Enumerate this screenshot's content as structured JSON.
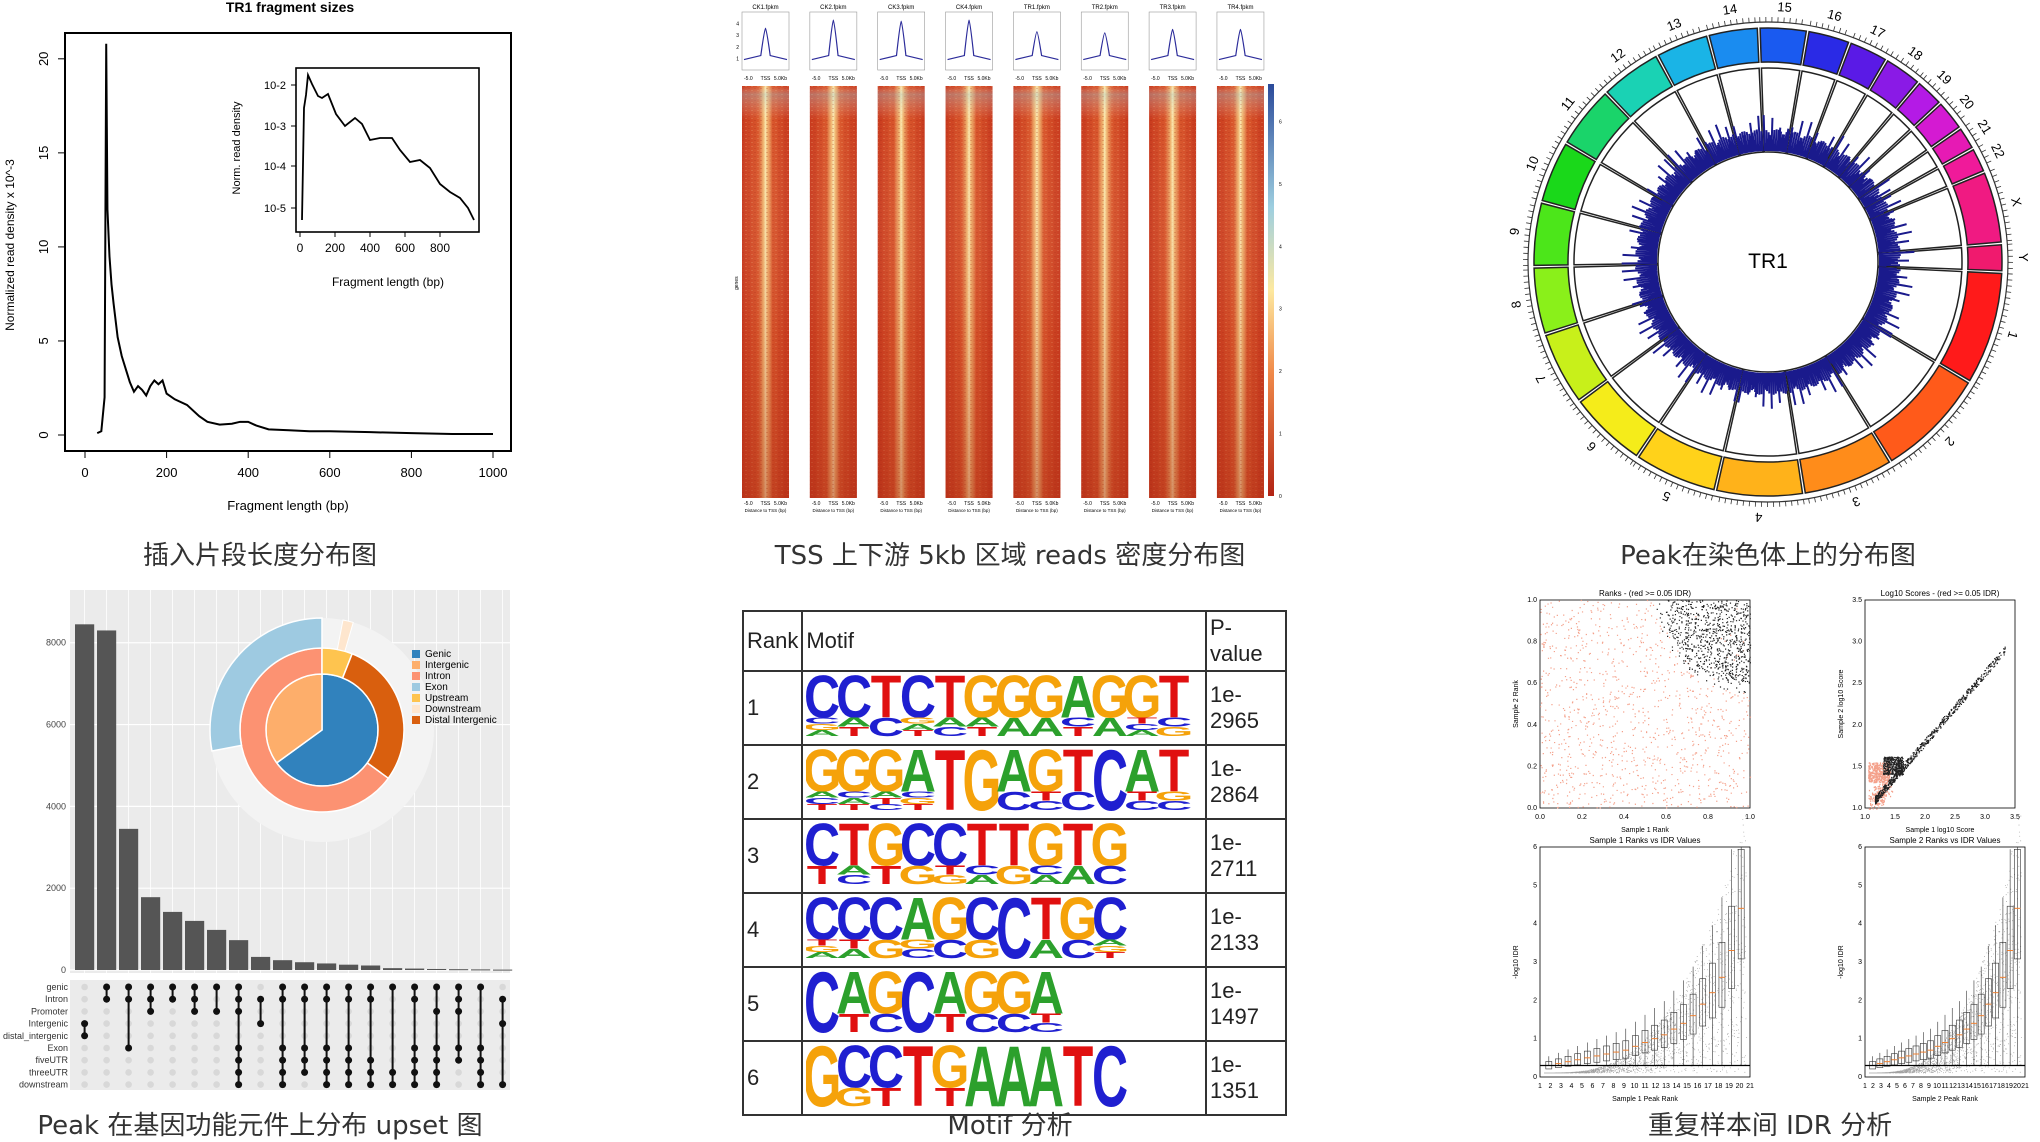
{
  "captions": {
    "p1": "插入片段长度分布图",
    "p2": "TSS 上下游 5kb 区域 reads 密度分布图",
    "p3": "Peak在染色体上的分布图",
    "p4": "Peak 在基因功能元件上分布 upset 图",
    "p5": "Motif 分析",
    "p6": "重复样本间 IDR 分析"
  },
  "colors": {
    "A": "#2ca02c",
    "C": "#1f1fd0",
    "G": "#f5a20a",
    "T": "#e01010",
    "bar": "#555555",
    "heat_low": "#c83a1e",
    "heat_high": "#fbe9a6",
    "circos_density": "#1a1a8c"
  },
  "chart_data": [
    {
      "type": "line",
      "title": "TR1 fragment sizes",
      "xlabel": "Fragment length (bp)",
      "ylabel": "Normalized read density x 10^-3",
      "xlim": [
        0,
        1000
      ],
      "ylim": [
        0,
        21
      ],
      "xticks": [
        "0",
        "200",
        "400",
        "600",
        "800",
        "1000"
      ],
      "yticks": [
        "0",
        "5",
        "10",
        "15",
        "20"
      ],
      "x": [
        30,
        40,
        48,
        52,
        55,
        60,
        65,
        70,
        80,
        90,
        100,
        110,
        120,
        130,
        140,
        150,
        160,
        170,
        180,
        190,
        200,
        220,
        250,
        280,
        300,
        330,
        360,
        380,
        400,
        420,
        450,
        500,
        550,
        600,
        700,
        800,
        900,
        1000
      ],
      "y": [
        0.1,
        0.2,
        2.0,
        20.8,
        12.0,
        9.5,
        8.0,
        7.0,
        5.2,
        4.2,
        3.5,
        2.8,
        2.3,
        2.6,
        2.4,
        2.1,
        2.6,
        2.9,
        2.7,
        2.9,
        2.2,
        1.9,
        1.6,
        1.0,
        0.7,
        0.55,
        0.6,
        0.7,
        0.7,
        0.5,
        0.3,
        0.25,
        0.2,
        0.2,
        0.15,
        0.1,
        0.05,
        0.05
      ],
      "inset": {
        "ylabel": "Norm. read density",
        "xlabel": "Fragment length (bp)",
        "yscale": "log",
        "xticks": [
          "0",
          "200",
          "400",
          "600",
          "800"
        ],
        "yticks": [
          "10^-5",
          "10^-4",
          "10^-3",
          "10^-2"
        ]
      }
    },
    {
      "type": "heatmap",
      "samples": [
        "CK1.fpkm",
        "CK2.fpkm",
        "CK3.fpkm",
        "CK4.fpkm",
        "TR1.fpkm",
        "TR2.fpkm",
        "TR3.fpkm",
        "TR4.fpkm"
      ],
      "profile_peak": [
        3.6,
        4.3,
        4.2,
        4.3,
        3.3,
        3.2,
        3.5,
        3.5
      ],
      "profile_yticks": [
        "1",
        "2",
        "3",
        "4"
      ],
      "xticks": [
        "-5.0",
        "TSS",
        "5.0Kb"
      ],
      "xlabel": "Distance to TSS (bp)",
      "row_label": "genes",
      "colorbar_ticks": [
        "0",
        "1",
        "2",
        "3",
        "4",
        "5",
        "6"
      ]
    },
    {
      "type": "circos",
      "center_label": "TR1",
      "chromosomes": [
        "1",
        "2",
        "3",
        "4",
        "5",
        "6",
        "7",
        "8",
        "9",
        "10",
        "11",
        "12",
        "13",
        "14",
        "15",
        "16",
        "17",
        "18",
        "19",
        "20",
        "21",
        "22",
        "X",
        "Y"
      ],
      "chrom_colors": [
        "#ff1a1a",
        "#ff5a1a",
        "#ff8c1a",
        "#ffb21a",
        "#ffd21a",
        "#f5ec1a",
        "#c8f01a",
        "#8af01a",
        "#4ce61a",
        "#1ad81a",
        "#1ad46a",
        "#1ad2b4",
        "#1ab4e6",
        "#1a8cf0",
        "#1a5af0",
        "#2a2ae6",
        "#5a1ae6",
        "#8a1ae6",
        "#b41ae6",
        "#d41ad2",
        "#e61ab4",
        "#f01a9a",
        "#f01a82",
        "#f01a6e"
      ]
    },
    {
      "type": "bar",
      "title": "",
      "values": [
        8450,
        8300,
        3450,
        1780,
        1420,
        1200,
        980,
        730,
        320,
        240,
        190,
        160,
        130,
        110,
        45,
        35,
        25,
        20,
        15,
        10
      ],
      "yticks": [
        "0",
        "2000",
        "4000",
        "6000",
        "8000"
      ],
      "ylim": [
        0,
        8800
      ],
      "sets": [
        "genic",
        "Intron",
        "Promoter",
        "Intergenic",
        "distal_intergenic",
        "Exon",
        "fiveUTR",
        "threeUTR",
        "downstream"
      ],
      "matrix": [
        [
          3,
          4
        ],
        [
          0,
          1
        ],
        [
          0,
          1,
          5
        ],
        [
          0,
          1,
          2
        ],
        [
          0,
          1
        ],
        [
          0,
          1,
          2
        ],
        [
          0,
          2
        ],
        [
          0,
          1,
          2,
          5,
          6,
          7,
          8
        ],
        [
          1,
          3
        ],
        [
          0,
          1,
          5,
          6,
          7,
          8
        ],
        [
          0,
          1,
          5,
          6,
          7
        ],
        [
          0,
          1,
          5,
          6,
          7,
          8
        ],
        [
          0,
          1,
          5,
          6,
          7,
          8
        ],
        [
          0,
          1,
          6,
          7,
          8
        ],
        [
          0,
          7,
          8
        ],
        [
          0,
          1,
          5,
          6,
          7,
          8
        ],
        [
          0,
          2,
          5,
          6,
          7,
          8
        ],
        [
          0,
          1,
          2,
          5,
          6
        ],
        [
          0,
          5,
          6,
          7,
          8
        ],
        [
          1,
          3,
          8
        ]
      ],
      "legend": [
        "Genic",
        "Intergenic",
        "Intron",
        "Exon",
        "Upstream",
        "Downstream",
        "Distal Intergenic"
      ],
      "legend_colors": [
        "#3182bd",
        "#fdae6b",
        "#fc9272",
        "#9ecae1",
        "#fec44f",
        "#fee6ce",
        "#d95f0e"
      ],
      "pie_inner": [
        {
          "name": "Genic",
          "value": 0.65
        },
        {
          "name": "Intergenic",
          "value": 0.35
        }
      ],
      "pie_middle": [
        {
          "name": "Intron",
          "value": 0.62
        },
        {
          "name": "Distal Intergenic",
          "value": 0.32
        },
        {
          "name": "Upstream",
          "value": 0.06
        }
      ],
      "pie_outer": [
        {
          "name": "Exon",
          "value": 0.24
        },
        {
          "name": "Downstream",
          "value": 0.02
        }
      ]
    },
    {
      "type": "table",
      "header": [
        "Rank",
        "Motif",
        "P-value"
      ],
      "rows": [
        {
          "rank": "1",
          "p1": "1e-",
          "p2": "2965",
          "motif": [
            [
              "C",
              "C",
              "G",
              "A"
            ],
            [
              "C",
              "A",
              "T"
            ],
            [
              "T",
              "C"
            ],
            [
              "C",
              "G",
              "A",
              "T"
            ],
            [
              "T",
              "A",
              "C"
            ],
            [
              "G",
              "A",
              "T"
            ],
            [
              "G",
              "A"
            ],
            [
              "G",
              "A"
            ],
            [
              "A",
              "C",
              "T"
            ],
            [
              "G",
              "A"
            ],
            [
              "G",
              "T",
              "C",
              "A"
            ],
            [
              "T",
              "C",
              "G"
            ]
          ]
        },
        {
          "rank": "2",
          "p1": "1e-",
          "p2": "2864",
          "motif": [
            [
              "G",
              "A",
              "C",
              "T"
            ],
            [
              "G",
              "C",
              "A",
              "T"
            ],
            [
              "G",
              "A",
              "T",
              "C"
            ],
            [
              "A",
              "C",
              "G",
              "T"
            ],
            [
              "T"
            ],
            [
              "G"
            ],
            [
              "A",
              "C"
            ],
            [
              "G",
              "T",
              "C"
            ],
            [
              "T",
              "C"
            ],
            [
              "C"
            ],
            [
              "A",
              "T",
              "C"
            ],
            [
              "T",
              "G",
              "C"
            ]
          ]
        },
        {
          "rank": "3",
          "p1": "1e-",
          "p2": "2711",
          "motif": [
            [
              "C",
              "T"
            ],
            [
              "T",
              "A",
              "C"
            ],
            [
              "G",
              "T"
            ],
            [
              "C",
              "G"
            ],
            [
              "C",
              "T",
              "G"
            ],
            [
              "T",
              "C",
              "A"
            ],
            [
              "T",
              "G"
            ],
            [
              "G",
              "C",
              "A"
            ],
            [
              "T",
              "A"
            ],
            [
              "G",
              "C"
            ]
          ]
        },
        {
          "rank": "4",
          "p1": "1e-",
          "p2": "2133",
          "motif": [
            [
              "C",
              "T",
              "G",
              "A"
            ],
            [
              "C",
              "T",
              "A"
            ],
            [
              "C",
              "G"
            ],
            [
              "A",
              "G",
              "C"
            ],
            [
              "G",
              "C"
            ],
            [
              "C",
              "G"
            ],
            [
              "C"
            ],
            [
              "T",
              "A"
            ],
            [
              "G",
              "C"
            ],
            [
              "C",
              "A",
              "G",
              "T"
            ]
          ]
        },
        {
          "rank": "5",
          "p1": "1e-",
          "p2": "1497",
          "motif": [
            [
              "C"
            ],
            [
              "A",
              "T"
            ],
            [
              "G",
              "C"
            ],
            [
              "C"
            ],
            [
              "A",
              "T"
            ],
            [
              "G",
              "C"
            ],
            [
              "G",
              "C"
            ],
            [
              "A",
              "T",
              "C"
            ]
          ]
        },
        {
          "rank": "6",
          "p1": "1e-",
          "p2": "1351",
          "motif": [
            [
              "G"
            ],
            [
              "C",
              "G"
            ],
            [
              "C",
              "T"
            ],
            [
              "T"
            ],
            [
              "G",
              "T"
            ],
            [
              "A"
            ],
            [
              "A"
            ],
            [
              "A"
            ],
            [
              "T"
            ],
            [
              "C"
            ]
          ]
        }
      ]
    },
    {
      "type": "scatter",
      "title": "Ranks - (red >= 0.05 IDR)",
      "xlabel": "Sample 1 Rank",
      "ylabel": "Sample 2 Rank",
      "xlim": [
        0,
        1.0
      ],
      "ylim": [
        0,
        1.0
      ],
      "xticks": [
        "0.0",
        "0.2",
        "0.4",
        "0.6",
        "0.8",
        "1.0"
      ],
      "yticks": [
        "0.0",
        "0.2",
        "0.4",
        "0.6",
        "0.8",
        "1.0"
      ]
    },
    {
      "type": "scatter",
      "title": "Log10 Scores - (red >= 0.05 IDR)",
      "xlabel": "Sample 1 log10 Score",
      "ylabel": "Sample 2 log10 Score",
      "xticks": [
        "1.0",
        "1.5",
        "2.0",
        "2.5",
        "3.0",
        "3.5"
      ],
      "yticks": [
        "1.0",
        "1.5",
        "2.0",
        "2.5",
        "3.0",
        "3.5"
      ]
    },
    {
      "type": "bar",
      "title": "Sample 1 Ranks vs IDR Values",
      "xlabel": "Sample 1 Peak Rank",
      "ylabel": "-log10 IDR",
      "xticks": [
        "1",
        "2",
        "3",
        "4",
        "5",
        "6",
        "7",
        "8",
        "9",
        "10",
        "11",
        "12",
        "13",
        "14",
        "15",
        "16",
        "17",
        "18",
        "19",
        "20",
        "21"
      ],
      "yticks": [
        "0",
        "1",
        "2",
        "3",
        "4",
        "5",
        "6"
      ],
      "medians": [
        0.3,
        0.35,
        0.4,
        0.45,
        0.5,
        0.55,
        0.6,
        0.65,
        0.7,
        0.8,
        0.9,
        1.0,
        1.1,
        1.25,
        1.4,
        1.6,
        1.9,
        2.2,
        2.6,
        3.3,
        4.4
      ]
    },
    {
      "type": "bar",
      "title": "Sample 2 Ranks vs IDR Values",
      "xlabel": "Sample 2 Peak Rank",
      "ylabel": "-log10 IDR",
      "xticks": [
        "1",
        "2",
        "3",
        "4",
        "5",
        "6",
        "7",
        "8",
        "9",
        "10",
        "11",
        "12",
        "13",
        "14",
        "15",
        "16",
        "17",
        "18",
        "19",
        "20",
        "21"
      ],
      "yticks": [
        "0",
        "1",
        "2",
        "3",
        "4",
        "5",
        "6"
      ],
      "medians": [
        0.3,
        0.35,
        0.4,
        0.45,
        0.5,
        0.55,
        0.6,
        0.65,
        0.7,
        0.8,
        0.9,
        1.0,
        1.1,
        1.25,
        1.4,
        1.6,
        1.9,
        2.2,
        2.6,
        3.3,
        4.4
      ]
    }
  ]
}
